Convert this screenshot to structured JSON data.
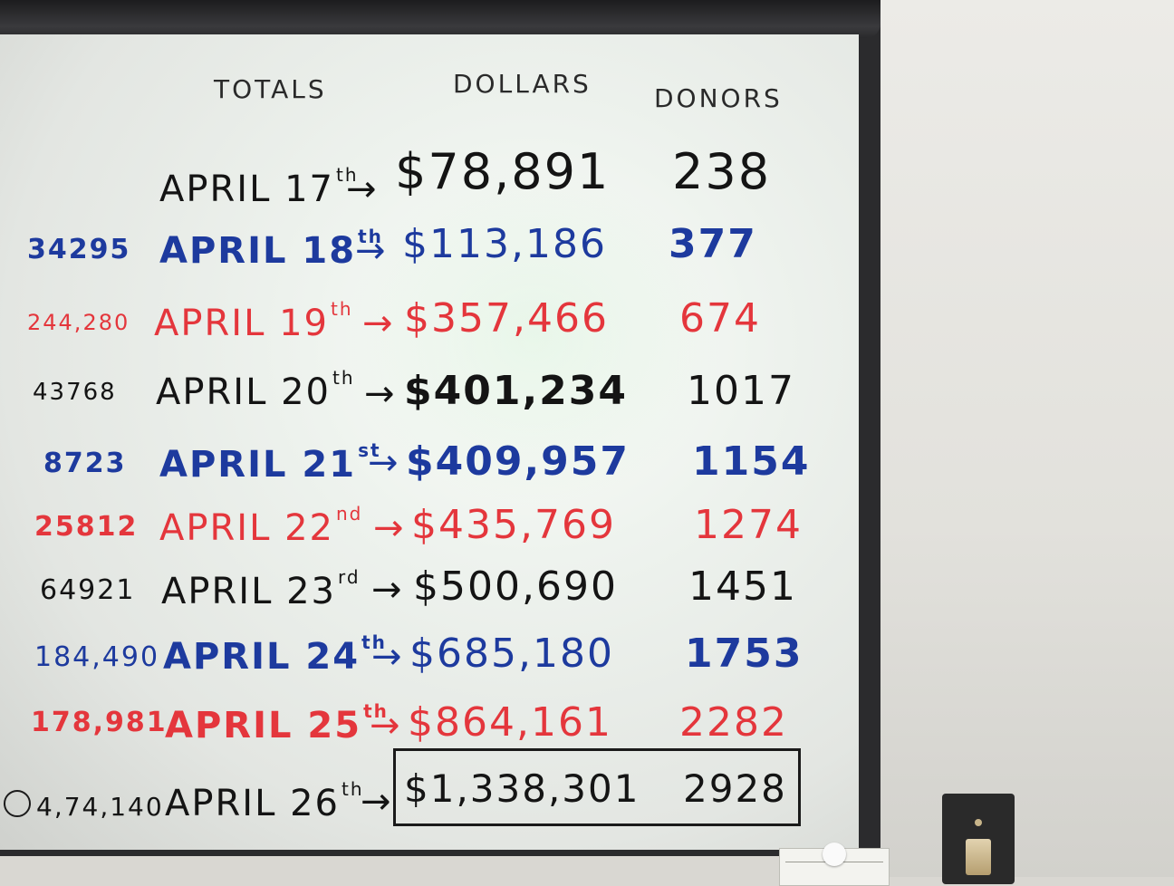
{
  "headers": {
    "totals": "TOTALS",
    "dollars": "DOLLARS",
    "donors": "DONORS"
  },
  "arrow": "→",
  "rows": [
    {
      "total": "",
      "month": "APRIL",
      "day": "17",
      "suffix": "th",
      "dollars": "$78,891",
      "donors": "238",
      "color": "#141414"
    },
    {
      "total": "34295",
      "month": "APRIL",
      "day": "18",
      "suffix": "th",
      "dollars": "$113,186",
      "donors": "377",
      "color": "#1d3a9e"
    },
    {
      "total": "244,280",
      "month": "APRIL",
      "day": "19",
      "suffix": "th",
      "dollars": "$357,466",
      "donors": "674",
      "color": "#e4363c"
    },
    {
      "total": "43768",
      "month": "APRIL",
      "day": "20",
      "suffix": "th",
      "dollars": "$401,234",
      "donors": "1017",
      "color": "#141414"
    },
    {
      "total": "8723",
      "month": "APRIL",
      "day": "21",
      "suffix": "st",
      "dollars": "$409,957",
      "donors": "1154",
      "color": "#1d3a9e"
    },
    {
      "total": "25812",
      "month": "APRIL",
      "day": "22",
      "suffix": "nd",
      "dollars": "$435,769",
      "donors": "1274",
      "color": "#e4363c"
    },
    {
      "total": "64921",
      "month": "APRIL",
      "day": "23",
      "suffix": "rd",
      "dollars": "$500,690",
      "donors": "1451",
      "color": "#141414"
    },
    {
      "total": "184,490",
      "month": "APRIL",
      "day": "24",
      "suffix": "th",
      "dollars": "$685,180",
      "donors": "1753",
      "color": "#1d3a9e"
    },
    {
      "total": "178,981",
      "month": "APRIL",
      "day": "25",
      "suffix": "th",
      "dollars": "$864,161",
      "donors": "2282",
      "color": "#e4363c"
    },
    {
      "total": "4,74,140",
      "month": "APRIL",
      "day": "26",
      "suffix": "th",
      "dollars": "$1,338,301",
      "donors": "2928",
      "color": "#141414"
    }
  ]
}
